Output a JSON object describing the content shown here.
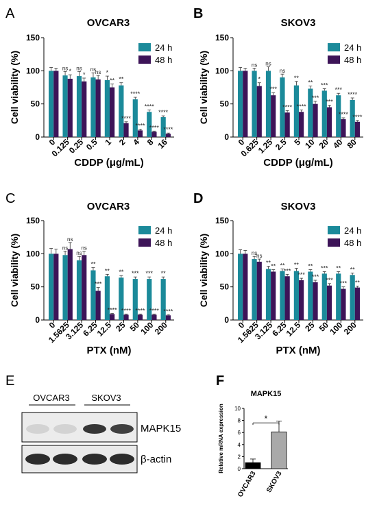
{
  "colors": {
    "series_24h": "#1b8a9a",
    "series_48h": "#3d1458",
    "control": "#000000",
    "treated": "#a9a9a9",
    "band": "#222222"
  },
  "panels": {
    "A": "A",
    "B": "B",
    "C": "C",
    "D": "D",
    "E": "E",
    "F": "F"
  },
  "chart_data": [
    {
      "id": "A",
      "type": "bar",
      "title": "OVCAR3",
      "xlabel": "CDDP (μg/mL)",
      "ylabel": "Cell viability (%)",
      "ylim": [
        0,
        150
      ],
      "yticks": [
        "0",
        "50",
        "100",
        "150"
      ],
      "categories": [
        "0",
        "0.125",
        "0.25",
        "0.5",
        "1",
        "2",
        "4",
        "8",
        "16"
      ],
      "series": [
        {
          "name": "24 h",
          "values": [
            100,
            93,
            92,
            90,
            86,
            78,
            57,
            38,
            30
          ],
          "err": [
            5,
            6,
            7,
            7,
            6,
            4,
            3,
            3,
            2
          ],
          "sig": [
            "",
            "ns",
            "ns",
            "ns",
            "*",
            "**",
            "****",
            "****",
            "****"
          ]
        },
        {
          "name": "48 h",
          "values": [
            100,
            88,
            84,
            87,
            75,
            21,
            10,
            8,
            5
          ],
          "err": [
            4,
            6,
            5,
            6,
            5,
            2,
            2,
            1,
            1
          ],
          "sig": [
            "",
            "*",
            "*",
            "ns",
            "**",
            "****",
            "****",
            "****",
            "****"
          ]
        }
      ],
      "legend_position": "top-right"
    },
    {
      "id": "B",
      "type": "bar",
      "title": "SKOV3",
      "xlabel": "CDDP (μg/mL)",
      "ylabel": "Cell viability (%)",
      "ylim": [
        0,
        150
      ],
      "yticks": [
        "0",
        "50",
        "100",
        "150"
      ],
      "categories": [
        "0",
        "0.625",
        "1.25",
        "2.5",
        "5",
        "10",
        "20",
        "40",
        "80"
      ],
      "series": [
        {
          "name": "24 h",
          "values": [
            100,
            100,
            100,
            90,
            78,
            73,
            70,
            63,
            56
          ],
          "err": [
            5,
            4,
            6,
            5,
            6,
            4,
            3,
            3,
            3
          ],
          "sig": [
            "",
            "ns",
            "ns",
            "ns",
            "**",
            "**",
            "***",
            "***",
            "****"
          ]
        },
        {
          "name": "48 h",
          "values": [
            100,
            77,
            63,
            37,
            38,
            50,
            45,
            27,
            23
          ],
          "err": [
            4,
            5,
            4,
            3,
            3,
            4,
            3,
            2,
            2
          ],
          "sig": [
            "",
            "*",
            "***",
            "****",
            "****",
            "***",
            "***",
            "****",
            "****"
          ]
        }
      ],
      "legend_position": "top-right"
    },
    {
      "id": "C",
      "type": "bar",
      "title": "OVCAR3",
      "xlabel": "PTX (nM)",
      "ylabel": "Cell viability (%)",
      "ylim": [
        0,
        150
      ],
      "yticks": [
        "0",
        "50",
        "100",
        "150"
      ],
      "categories": [
        "0",
        "1.5625",
        "3.125",
        "6.25",
        "12.5",
        "25",
        "50",
        "100",
        "200"
      ],
      "series": [
        {
          "name": "24 h",
          "values": [
            100,
            98,
            90,
            75,
            66,
            64,
            62,
            62,
            62
          ],
          "err": [
            8,
            6,
            6,
            4,
            3,
            3,
            3,
            3,
            3
          ],
          "sig": [
            "",
            "ns",
            "ns",
            "**",
            "**",
            "**",
            "***",
            "***",
            "**"
          ]
        },
        {
          "name": "48 h",
          "values": [
            100,
            107,
            98,
            44,
            9,
            8,
            8,
            8,
            7
          ],
          "err": [
            7,
            10,
            6,
            5,
            1,
            1,
            1,
            1,
            1
          ],
          "sig": [
            "",
            "ns",
            "ns",
            "***",
            "****",
            "****",
            "****",
            "****",
            "****"
          ]
        }
      ],
      "legend_position": "top-right"
    },
    {
      "id": "D",
      "type": "bar",
      "title": "SKOV3",
      "xlabel": "PTX (nM)",
      "ylabel": "Cell viability (%)",
      "ylim": [
        0,
        150
      ],
      "yticks": [
        "0",
        "50",
        "100",
        "150"
      ],
      "categories": [
        "0",
        "1.5625",
        "3.125",
        "6.25",
        "12.5",
        "25",
        "50",
        "100",
        "200"
      ],
      "series": [
        {
          "name": "24 h",
          "values": [
            100,
            92,
            77,
            74,
            74,
            73,
            70,
            70,
            68
          ],
          "err": [
            6,
            4,
            4,
            3,
            4,
            3,
            3,
            3,
            3
          ],
          "sig": [
            "",
            "ns",
            "**",
            "**",
            "**",
            "**",
            "***",
            "**",
            "**"
          ]
        },
        {
          "name": "48 h",
          "values": [
            100,
            88,
            73,
            66,
            60,
            57,
            52,
            47,
            49
          ],
          "err": [
            5,
            4,
            3,
            3,
            3,
            3,
            3,
            3,
            2
          ],
          "sig": [
            "",
            "ns",
            "**",
            "***",
            "***",
            "***",
            "***",
            "***",
            "**"
          ]
        }
      ],
      "legend_position": "top-right"
    },
    {
      "id": "F",
      "type": "bar",
      "title": "MAPK15",
      "ylabel": "Relative mRNA expression",
      "ylim": [
        0,
        10
      ],
      "yticks": [
        "0",
        "2",
        "4",
        "6",
        "8",
        "10"
      ],
      "categories": [
        "OVCAR3",
        "SKOV3"
      ],
      "values": [
        1,
        6.1
      ],
      "err": [
        0.6,
        1.8
      ],
      "significance": "*"
    }
  ],
  "blot": {
    "group_labels": [
      "OVCAR3",
      "SKOV3"
    ],
    "targets": [
      "MAPK15",
      "β-actin"
    ],
    "lanes": 4
  }
}
